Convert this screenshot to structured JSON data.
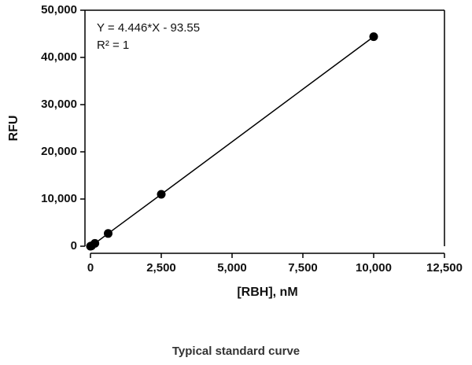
{
  "chart_data": {
    "type": "scatter",
    "title": "Typical standard curve",
    "x_label": "[RBH], nM",
    "y_label": "RFU",
    "annotations": [
      "Y = 4.446*X - 93.55",
      "R² = 1"
    ],
    "x": [
      0,
      39.06,
      156.25,
      625,
      2500,
      10000
    ],
    "series": [
      {
        "color": "#000000",
        "values": [
          0,
          80,
          600,
          2700,
          11000,
          44400
        ]
      }
    ],
    "xlim": [
      0,
      12500
    ],
    "ylim": [
      0,
      50000
    ],
    "xticks": [
      0,
      {
        "value": 2500,
        "label": "2,500"
      },
      {
        "value": 5000,
        "label": "5,000"
      },
      {
        "value": 7500,
        "label": "7,500"
      },
      {
        "value": 10000,
        "label": "10,000"
      },
      {
        "value": 12500,
        "label": "12,500"
      }
    ],
    "yticks": [
      0,
      {
        "value": 10000,
        "label": "10,000"
      },
      {
        "value": 20000,
        "label": "20,000"
      },
      {
        "value": 30000,
        "label": "30,000"
      },
      {
        "value": 40000,
        "label": "40,000"
      },
      {
        "value": 50000,
        "label": "50,000"
      }
    ],
    "grid": false
  }
}
